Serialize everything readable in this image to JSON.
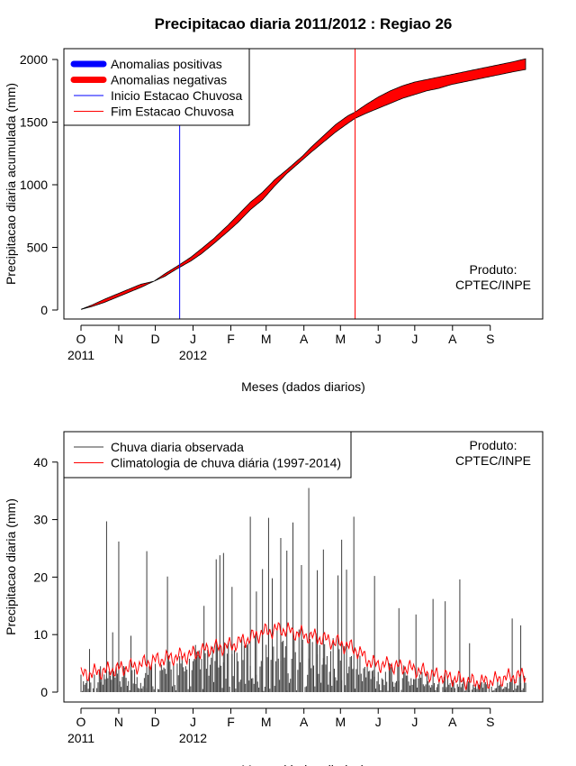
{
  "title": "Precipitacao diaria 2011/2012 : Regiao 26",
  "chart_data": [
    {
      "type": "area",
      "ylabel": "Precipitacao diaria acumulada (mm)",
      "xlabel": "Meses (dados diarios)",
      "xlim": [
        1,
        366
      ],
      "ylim": [
        0,
        2000
      ],
      "yticks": [
        0,
        500,
        1000,
        1500,
        2000
      ],
      "month_ticks": [
        "O",
        "N",
        "D",
        "J",
        "F",
        "M",
        "A",
        "M",
        "J",
        "J",
        "A",
        "S"
      ],
      "year_labels": [
        "2011",
        "2012"
      ],
      "legend": [
        {
          "label": "Anomalias positivas",
          "color": "#0000ff"
        },
        {
          "label": "Anomalias negativas",
          "color": "#ff0000"
        },
        {
          "label": "Inicio Estacao Chuvosa",
          "color": "#0000ff"
        },
        {
          "label": "Fim Estacao Chuvosa",
          "color": "#ff0000"
        }
      ],
      "annotation": [
        "Produto:",
        "CPTEC/INPE"
      ],
      "rainy_season_start_day": 82,
      "rainy_season_end_day": 226,
      "observed_cumulative": {
        "x": [
          1,
          10,
          20,
          30,
          40,
          50,
          61,
          70,
          80,
          91,
          100,
          110,
          122,
          130,
          140,
          150,
          160,
          170,
          183,
          190,
          200,
          210,
          220,
          226,
          235,
          245,
          255,
          265,
          275,
          285,
          295,
          305,
          315,
          325,
          335,
          345,
          355,
          366
        ],
        "y": [
          5,
          40,
          85,
          125,
          165,
          205,
          230,
          270,
          330,
          390,
          450,
          530,
          630,
          700,
          800,
          880,
          990,
          1090,
          1200,
          1260,
          1340,
          1420,
          1490,
          1530,
          1570,
          1610,
          1650,
          1690,
          1720,
          1750,
          1770,
          1800,
          1820,
          1840,
          1860,
          1880,
          1900,
          1920
        ]
      },
      "climatology_cumulative": {
        "x": [
          1,
          10,
          20,
          30,
          40,
          50,
          61,
          70,
          80,
          91,
          100,
          110,
          122,
          130,
          140,
          150,
          160,
          170,
          183,
          190,
          200,
          210,
          220,
          226,
          235,
          245,
          255,
          265,
          275,
          285,
          295,
          305,
          315,
          325,
          335,
          345,
          355,
          366
        ],
        "y": [
          5,
          28,
          60,
          100,
          140,
          180,
          230,
          290,
          350,
          420,
          490,
          570,
          680,
          760,
          860,
          940,
          1040,
          1120,
          1230,
          1300,
          1390,
          1480,
          1550,
          1580,
          1640,
          1700,
          1750,
          1790,
          1820,
          1840,
          1860,
          1880,
          1900,
          1920,
          1940,
          1960,
          1980,
          2005
        ]
      }
    },
    {
      "type": "bar",
      "ylabel": "Precipitacao diaria (mm)",
      "xlabel": "Meses (dados diarios)",
      "xlim": [
        1,
        366
      ],
      "ylim": [
        0,
        42
      ],
      "yticks": [
        0,
        10,
        20,
        30,
        40
      ],
      "month_ticks": [
        "O",
        "N",
        "D",
        "J",
        "F",
        "M",
        "A",
        "M",
        "J",
        "J",
        "A",
        "S"
      ],
      "year_labels": [
        "2011",
        "2012"
      ],
      "legend": [
        {
          "label": "Chuva diaria observada",
          "color": "#3c3c3c"
        },
        {
          "label": "Climatologia de chuva diária (1997-2014)",
          "color": "#ff0000"
        }
      ],
      "annotation": [
        "Produto:",
        "CPTEC/INPE"
      ],
      "notable_daily_rain": [
        {
          "day": 8,
          "mm": 7.5
        },
        {
          "day": 17,
          "mm": 4.5
        },
        {
          "day": 22,
          "mm": 29.7
        },
        {
          "day": 27,
          "mm": 10.4
        },
        {
          "day": 32,
          "mm": 26.2
        },
        {
          "day": 42,
          "mm": 9.8
        },
        {
          "day": 55,
          "mm": 24.5
        },
        {
          "day": 72,
          "mm": 20.1
        },
        {
          "day": 95,
          "mm": 8.2
        },
        {
          "day": 102,
          "mm": 15.0
        },
        {
          "day": 112,
          "mm": 23.1
        },
        {
          "day": 115,
          "mm": 23.8
        },
        {
          "day": 118,
          "mm": 24.2
        },
        {
          "day": 125,
          "mm": 18.3
        },
        {
          "day": 140,
          "mm": 30.5
        },
        {
          "day": 145,
          "mm": 17.5
        },
        {
          "day": 150,
          "mm": 21.4
        },
        {
          "day": 155,
          "mm": 30.3
        },
        {
          "day": 158,
          "mm": 19.8
        },
        {
          "day": 165,
          "mm": 26.8
        },
        {
          "day": 170,
          "mm": 24.6
        },
        {
          "day": 175,
          "mm": 29.5
        },
        {
          "day": 182,
          "mm": 22.1
        },
        {
          "day": 188,
          "mm": 35.5
        },
        {
          "day": 195,
          "mm": 21.2
        },
        {
          "day": 200,
          "mm": 24.8
        },
        {
          "day": 212,
          "mm": 20.3
        },
        {
          "day": 215,
          "mm": 26.5
        },
        {
          "day": 219,
          "mm": 21.3
        },
        {
          "day": 225,
          "mm": 30.5
        },
        {
          "day": 242,
          "mm": 20.2
        },
        {
          "day": 262,
          "mm": 14.6
        },
        {
          "day": 276,
          "mm": 13.5
        },
        {
          "day": 290,
          "mm": 16.2
        },
        {
          "day": 300,
          "mm": 15.8
        },
        {
          "day": 312,
          "mm": 19.6
        },
        {
          "day": 320,
          "mm": 8.5
        },
        {
          "day": 355,
          "mm": 12.8
        },
        {
          "day": 362,
          "mm": 11.6
        }
      ],
      "climatology_daily": {
        "x": [
          1,
          15,
          30,
          45,
          61,
          75,
          91,
          105,
          122,
          135,
          152,
          165,
          183,
          195,
          213,
          226,
          240,
          260,
          275,
          290,
          305,
          320,
          335,
          350,
          366
        ],
        "y": [
          3,
          3.5,
          4,
          4.5,
          5.5,
          6,
          6.5,
          7.5,
          8,
          9,
          10.5,
          11,
          10,
          9.5,
          8.5,
          7.5,
          5,
          4.5,
          4,
          3,
          2.5,
          1.8,
          1.8,
          2.5,
          3
        ]
      }
    }
  ]
}
